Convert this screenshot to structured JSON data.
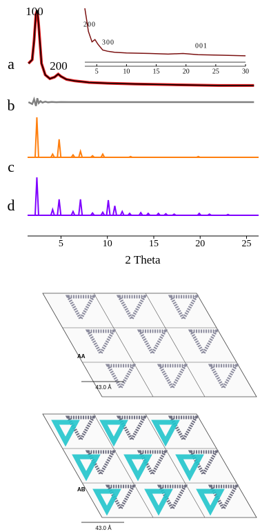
{
  "chart_data": [
    {
      "type": "line",
      "x_label": "2 Theta",
      "xlim": [
        1.4,
        26.3
      ],
      "xticks": [
        5,
        10,
        15,
        20,
        25
      ],
      "ylim": [
        0,
        100
      ],
      "annotations": [
        "100",
        "200"
      ],
      "series": [
        {
          "name": "a",
          "type": "line",
          "color": "#000000",
          "fit_color": "#e31a1c",
          "x": [
            1.5,
            1.9,
            2.1,
            2.3,
            2.45,
            2.6,
            2.9,
            3.3,
            3.8,
            4.3,
            4.7,
            5.0,
            5.6,
            6.5,
            8,
            10,
            13,
            17,
            22,
            25.8
          ],
          "values": [
            30,
            35,
            60,
            95,
            100,
            80,
            30,
            15,
            10,
            12,
            16,
            13,
            9,
            7,
            5,
            4,
            3,
            2,
            1,
            1
          ]
        },
        {
          "name": "b",
          "type": "line",
          "color": "#808080",
          "x": [
            1.5,
            1.9,
            2.1,
            2.3,
            2.45,
            2.6,
            2.8,
            3.0,
            3.3,
            3.6,
            4.0,
            4.5,
            5.0,
            6,
            25.8
          ],
          "values": [
            50,
            30,
            80,
            10,
            90,
            40,
            60,
            45,
            55,
            48,
            52,
            49,
            51,
            50,
            50
          ]
        },
        {
          "name": "c",
          "type": "stick",
          "color": "#ff7f0e",
          "x": [
            2.4,
            4.1,
            4.8,
            6.3,
            7.1,
            8.4,
            9.5,
            12.5,
            19.8
          ],
          "values": [
            100,
            8,
            45,
            6,
            15,
            4,
            8,
            2,
            2
          ]
        },
        {
          "name": "d",
          "type": "stick",
          "color": "#7f00ff",
          "x": [
            2.4,
            4.1,
            4.8,
            6.3,
            7.1,
            8.4,
            9.5,
            10.1,
            10.8,
            11.6,
            12.4,
            13.6,
            14.4,
            15.5,
            16.3,
            17.2,
            19.9,
            21,
            23
          ],
          "values": [
            100,
            15,
            42,
            10,
            42,
            6,
            8,
            40,
            25,
            10,
            5,
            7,
            5,
            5,
            4,
            3,
            5,
            3,
            2
          ]
        }
      ]
    },
    {
      "type": "line",
      "xlim": [
        3,
        30
      ],
      "xticks": [
        5,
        10,
        15,
        20,
        25,
        30
      ],
      "ylim": [
        0,
        100
      ],
      "annotations": [
        "200",
        "300",
        "001"
      ],
      "series": [
        {
          "color": "#7a1010",
          "x": [
            3,
            3.6,
            4.2,
            4.7,
            5.2,
            6,
            6.8,
            7.4,
            8,
            10,
            14,
            17,
            19.5,
            22,
            26,
            30
          ],
          "values": [
            100,
            60,
            42,
            46,
            38,
            28,
            26,
            25,
            24,
            23,
            22,
            21,
            22,
            20,
            19,
            18
          ]
        },
        {
          "color": "#808080",
          "x": [
            3,
            30
          ],
          "values": [
            7,
            7
          ]
        }
      ]
    }
  ],
  "structures": [
    {
      "label": "AA",
      "scale": "43.0 Å"
    },
    {
      "label": "AB",
      "scale": "43.0 Å"
    }
  ]
}
